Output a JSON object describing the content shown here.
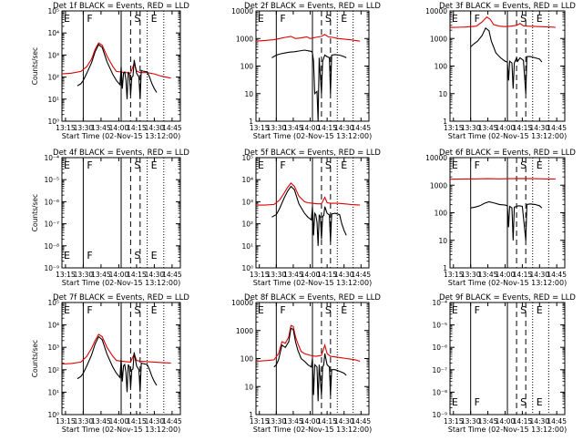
{
  "figure": {
    "ylabel": "Counts/sec",
    "xlabel": "Start Time (02-Nov-15 13:12:00)",
    "x_ticks": [
      "13:15",
      "13:30",
      "13:45",
      "14:00",
      "14:15",
      "14:30",
      "14:45"
    ],
    "x_tick_minutes": [
      15,
      30,
      45,
      60,
      75,
      90,
      105
    ],
    "x_range_minutes": [
      12,
      112
    ],
    "t0": "13:00",
    "markers": [
      {
        "letter": "E",
        "minute": 13.5,
        "style": "none"
      },
      {
        "letter": "F",
        "minute": 30,
        "style": "solid"
      },
      {
        "letter": "",
        "minute": 62,
        "style": "solid"
      },
      {
        "letter": "S",
        "minute": 70,
        "style": "dashed"
      },
      {
        "letter": "",
        "minute": 78,
        "style": "dashed"
      },
      {
        "letter": "E",
        "minute": 84,
        "style": "dotted"
      },
      {
        "letter": "",
        "minute": 98,
        "style": "dotted"
      }
    ],
    "colors": {
      "events": "#000000",
      "lld": "#dd0000"
    }
  },
  "chart_data": [
    {
      "type": "line",
      "title": "Det 1f BLACK = Events, RED = LLD",
      "ylim_exp": [
        0,
        5
      ],
      "yticks": [
        "10⁰",
        "10¹",
        "10²",
        "10³",
        "10⁴",
        "10⁵"
      ],
      "xlabel": "Start Time (02-Nov-15 13:12:00)",
      "ylabel": "Counts/sec",
      "show_ylabel": true,
      "show_letters": false,
      "series": [
        {
          "name": "LLD",
          "color": "#dd0000",
          "x": [
            12,
            20,
            28,
            33,
            37,
            40,
            43,
            46,
            50,
            55,
            58,
            62,
            66,
            70,
            73,
            75,
            78,
            84,
            90,
            96,
            104
          ],
          "y": [
            140,
            150,
            180,
            300,
            650,
            1800,
            3500,
            2800,
            900,
            300,
            180,
            170,
            160,
            150,
            420,
            190,
            160,
            160,
            140,
            110,
            90
          ]
        },
        {
          "name": "Events",
          "color": "#000000",
          "x": [
            25,
            28,
            30,
            33,
            37,
            40,
            43,
            46,
            50,
            55,
            58,
            61,
            62,
            63,
            64,
            65,
            66,
            67,
            68,
            69,
            70,
            71,
            72,
            73,
            75,
            77,
            78,
            79,
            80,
            84,
            86,
            88,
            90,
            92
          ],
          "y": [
            40,
            50,
            70,
            150,
            450,
            1400,
            3000,
            2200,
            500,
            130,
            70,
            45,
            300,
            30,
            150,
            170,
            80,
            10,
            170,
            130,
            15,
            100,
            110,
            600,
            150,
            100,
            10,
            200,
            190,
            170,
            100,
            50,
            30,
            20
          ]
        }
      ]
    },
    {
      "type": "line",
      "title": "Det 2f BLACK = Events, RED = LLD",
      "ylim_exp": [
        0,
        4
      ],
      "yticks": [
        "1",
        "10",
        "100",
        "1000",
        "10000"
      ],
      "xlabel": "Start Time (02-Nov-15 13:12:00)",
      "ylabel": "Counts/sec",
      "show_ylabel": false,
      "show_letters": false,
      "series": [
        {
          "name": "LLD",
          "color": "#dd0000",
          "x": [
            12,
            20,
            28,
            33,
            38,
            43,
            47,
            52,
            57,
            60,
            65,
            70,
            73,
            76,
            80,
            85,
            90,
            95,
            100,
            104
          ],
          "y": [
            800,
            850,
            900,
            1000,
            1100,
            1200,
            1000,
            1050,
            1150,
            1000,
            1100,
            1200,
            1400,
            1150,
            1100,
            1000,
            950,
            900,
            850,
            800
          ]
        },
        {
          "name": "Events",
          "color": "#000000",
          "x": [
            26,
            30,
            34,
            38,
            42,
            46,
            50,
            55,
            58,
            61,
            62,
            63,
            64,
            66,
            67,
            68,
            70,
            71,
            72,
            73,
            75,
            77,
            78,
            79,
            82,
            86,
            90,
            92
          ],
          "y": [
            200,
            250,
            280,
            300,
            320,
            330,
            350,
            380,
            360,
            340,
            300,
            150,
            10,
            12,
            1,
            200,
            10,
            150,
            200,
            250,
            220,
            200,
            10,
            250,
            260,
            250,
            220,
            200
          ]
        }
      ]
    },
    {
      "type": "line",
      "title": "Det 3f BLACK = Events, RED = LLD",
      "ylim_exp": [
        0,
        4
      ],
      "yticks": [
        "1",
        "10",
        "100",
        "1000",
        "10000"
      ],
      "xlabel": "Start Time (02-Nov-15 13:12:00)",
      "ylabel": "Counts/sec",
      "show_ylabel": false,
      "show_letters": false,
      "series": [
        {
          "name": "LLD",
          "color": "#dd0000",
          "x": [
            12,
            25,
            35,
            40,
            44,
            47,
            50,
            55,
            60,
            65,
            70,
            73,
            76,
            80,
            90,
            100,
            104
          ],
          "y": [
            2500,
            2600,
            2800,
            4000,
            6000,
            5000,
            3200,
            2800,
            2700,
            2800,
            3000,
            3500,
            2900,
            2800,
            2700,
            2600,
            2550
          ]
        },
        {
          "name": "Events",
          "color": "#000000",
          "x": [
            30,
            33,
            36,
            40,
            43,
            46,
            48,
            52,
            56,
            60,
            62,
            63,
            64,
            66,
            67,
            68,
            70,
            71,
            73,
            76,
            78,
            79,
            82,
            86,
            90,
            92
          ],
          "y": [
            500,
            650,
            800,
            1300,
            2400,
            1900,
            800,
            300,
            200,
            150,
            140,
            30,
            150,
            130,
            15,
            130,
            200,
            150,
            200,
            160,
            10,
            220,
            220,
            200,
            180,
            140
          ]
        }
      ]
    },
    {
      "type": "line",
      "title": "Det 4f BLACK = Events, RED = LLD",
      "ylim_exp": [
        -9,
        -4
      ],
      "yticks": [
        "10⁻⁹",
        "10⁻⁸",
        "10⁻⁷",
        "10⁻⁶",
        "10⁻⁵",
        "10⁻⁴"
      ],
      "xlabel": "Start Time (02-Nov-15 13:12:00)",
      "ylabel": "Counts/sec",
      "show_ylabel": true,
      "show_letters": true,
      "series": []
    },
    {
      "type": "line",
      "title": "Det 5f BLACK = Events, RED = LLD",
      "ylim_exp": [
        0,
        5
      ],
      "yticks": [
        "10⁰",
        "10¹",
        "10²",
        "10³",
        "10⁴",
        "10⁵"
      ],
      "xlabel": "Start Time (02-Nov-15 13:12:00)",
      "ylabel": "Counts/sec",
      "show_ylabel": false,
      "show_letters": false,
      "series": [
        {
          "name": "LLD",
          "color": "#dd0000",
          "x": [
            12,
            20,
            28,
            33,
            37,
            40,
            43,
            46,
            50,
            55,
            58,
            62,
            66,
            70,
            73,
            75,
            78,
            84,
            90,
            96,
            104
          ],
          "y": [
            700,
            700,
            750,
            1200,
            2500,
            4500,
            7000,
            5000,
            1800,
            1000,
            900,
            850,
            800,
            800,
            1600,
            900,
            850,
            850,
            800,
            750,
            700
          ]
        },
        {
          "name": "Events",
          "color": "#000000",
          "x": [
            26,
            28,
            30,
            33,
            37,
            40,
            43,
            46,
            50,
            55,
            58,
            61,
            62,
            63,
            64,
            65,
            66,
            67,
            68,
            69,
            70,
            71,
            72,
            73,
            75,
            77,
            78,
            79,
            82,
            86,
            88,
            90,
            92
          ],
          "y": [
            200,
            230,
            260,
            500,
            1500,
            3000,
            5000,
            3500,
            800,
            300,
            200,
            150,
            600,
            30,
            300,
            250,
            120,
            10,
            260,
            200,
            20,
            220,
            230,
            600,
            300,
            250,
            15,
            280,
            300,
            260,
            100,
            50,
            30
          ]
        }
      ]
    },
    {
      "type": "line",
      "title": "Det 6f BLACK = Events, RED = LLD",
      "ylim_exp": [
        0,
        4
      ],
      "yticks": [
        "1",
        "10",
        "100",
        "1000",
        "10000"
      ],
      "xlabel": "Start Time (02-Nov-15 13:12:00)",
      "ylabel": "Counts/sec",
      "show_ylabel": false,
      "show_letters": false,
      "series": [
        {
          "name": "LLD",
          "color": "#dd0000",
          "x": [
            12,
            25,
            35,
            45,
            55,
            65,
            75,
            85,
            95,
            104
          ],
          "y": [
            1650,
            1680,
            1700,
            1720,
            1700,
            1720,
            1750,
            1720,
            1700,
            1680
          ]
        },
        {
          "name": "Events",
          "color": "#000000",
          "x": [
            30,
            34,
            38,
            42,
            46,
            50,
            55,
            60,
            62,
            63,
            64,
            66,
            67,
            68,
            70,
            72,
            75,
            78,
            79,
            82,
            86,
            90,
            92
          ],
          "y": [
            150,
            160,
            180,
            220,
            250,
            230,
            200,
            190,
            180,
            30,
            170,
            150,
            10,
            160,
            170,
            180,
            170,
            10,
            200,
            210,
            200,
            180,
            150
          ]
        }
      ]
    },
    {
      "type": "line",
      "title": "Det 7f BLACK = Events, RED = LLD",
      "ylim_exp": [
        0,
        5
      ],
      "yticks": [
        "10⁰",
        "10¹",
        "10²",
        "10³",
        "10⁴",
        "10⁵"
      ],
      "xlabel": "Start Time (02-Nov-15 13:12:00)",
      "ylabel": "Counts/sec",
      "show_ylabel": true,
      "show_letters": false,
      "series": [
        {
          "name": "LLD",
          "color": "#dd0000",
          "x": [
            12,
            20,
            28,
            33,
            37,
            40,
            43,
            46,
            50,
            55,
            58,
            62,
            66,
            70,
            73,
            75,
            78,
            84,
            90,
            96,
            104
          ],
          "y": [
            180,
            190,
            220,
            400,
            900,
            2000,
            3800,
            3000,
            1000,
            400,
            260,
            240,
            230,
            220,
            500,
            260,
            240,
            230,
            220,
            210,
            200
          ]
        },
        {
          "name": "Events",
          "color": "#000000",
          "x": [
            25,
            28,
            30,
            33,
            37,
            40,
            43,
            46,
            50,
            55,
            58,
            61,
            62,
            63,
            64,
            65,
            66,
            67,
            68,
            69,
            70,
            71,
            72,
            73,
            75,
            77,
            78,
            79,
            80,
            84,
            86,
            88,
            90,
            92
          ],
          "y": [
            40,
            50,
            70,
            150,
            450,
            1400,
            3000,
            2200,
            500,
            130,
            70,
            45,
            300,
            30,
            150,
            170,
            80,
            10,
            170,
            130,
            15,
            100,
            110,
            600,
            150,
            100,
            10,
            200,
            190,
            170,
            100,
            50,
            30,
            20
          ]
        }
      ]
    },
    {
      "type": "line",
      "title": "Det 8f BLACK = Events, RED = LLD",
      "ylim_exp": [
        0,
        4
      ],
      "yticks": [
        "1",
        "10",
        "100",
        "1000",
        "10000"
      ],
      "xlabel": "Start Time (02-Nov-15 13:12:00)",
      "ylabel": "Counts/sec",
      "show_ylabel": false,
      "show_letters": false,
      "series": [
        {
          "name": "LLD",
          "color": "#dd0000",
          "x": [
            12,
            22,
            28,
            32,
            35,
            38,
            41,
            43,
            45,
            47,
            49,
            52,
            55,
            60,
            65,
            70,
            73,
            75,
            78,
            85,
            92,
            100,
            104
          ],
          "y": [
            80,
            85,
            90,
            150,
            400,
            350,
            600,
            1500,
            1400,
            600,
            350,
            180,
            150,
            130,
            120,
            130,
            300,
            150,
            120,
            110,
            100,
            90,
            80
          ]
        },
        {
          "name": "Events",
          "color": "#000000",
          "x": [
            28,
            30,
            32,
            35,
            38,
            41,
            43,
            45,
            47,
            49,
            52,
            55,
            58,
            61,
            62,
            63,
            64,
            66,
            67,
            68,
            70,
            71,
            72,
            73,
            75,
            77,
            78,
            79,
            82,
            86,
            90,
            92
          ],
          "y": [
            50,
            60,
            90,
            300,
            250,
            400,
            1200,
            1100,
            400,
            200,
            100,
            80,
            60,
            50,
            100,
            5,
            60,
            50,
            3,
            60,
            5,
            50,
            60,
            150,
            60,
            50,
            5,
            40,
            40,
            35,
            30,
            25
          ]
        }
      ]
    },
    {
      "type": "line",
      "title": "Det 9f BLACK = Events, RED = LLD",
      "ylim_exp": [
        -9,
        -4
      ],
      "yticks": [
        "10⁻⁹",
        "10⁻⁸",
        "10⁻⁷",
        "10⁻⁶",
        "10⁻⁵",
        "10⁻⁴"
      ],
      "xlabel": "Start Time (02-Nov-15 13:12:00)",
      "ylabel": "Counts/sec",
      "show_ylabel": false,
      "show_letters": true,
      "series": []
    }
  ]
}
